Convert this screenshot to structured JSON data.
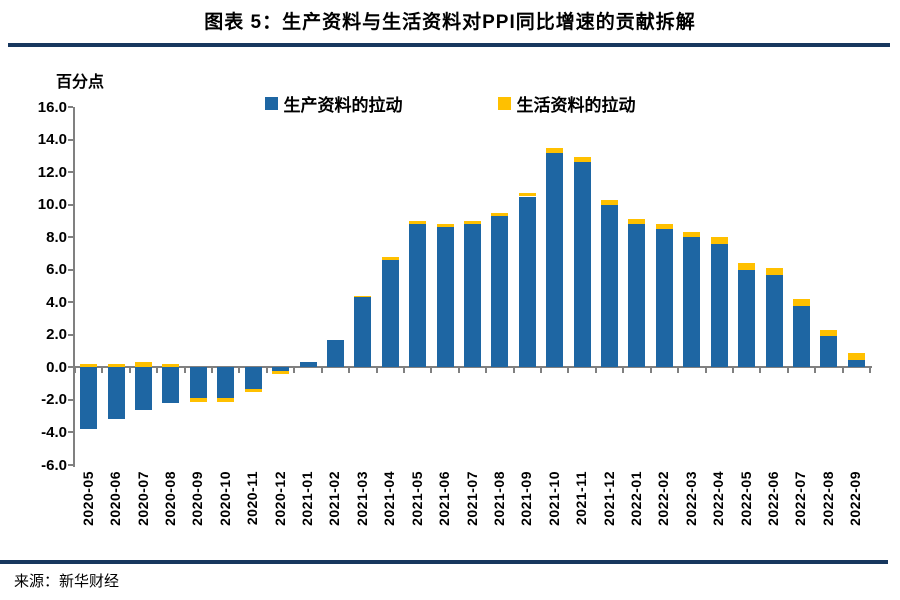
{
  "header": {
    "title": "图表 5：生产资料与生活资料对PPI同比增速的贡献拆解"
  },
  "footer": {
    "source": "来源：新华财经"
  },
  "colors": {
    "rule": "#17375E",
    "axis": "#808080",
    "production_blue": "#1E66A3",
    "livelihood_yellow": "#FFC000"
  },
  "chart_data": {
    "type": "bar",
    "stacked": true,
    "title": "图表 5：生产资料与生活资料对PPI同比增速的贡献拆解",
    "unit_label": "百分点",
    "xlabel": "",
    "ylabel": "百分点",
    "ylim": [
      -6.0,
      16.0
    ],
    "ytick_step": 2.0,
    "grid": false,
    "legend_position": "top",
    "categories": [
      "2020-05",
      "2020-06",
      "2020-07",
      "2020-08",
      "2020-09",
      "2020-10",
      "2020-11",
      "2020-12",
      "2021-01",
      "2021-02",
      "2021-03",
      "2021-04",
      "2021-05",
      "2021-06",
      "2021-07",
      "2021-08",
      "2021-09",
      "2021-10",
      "2021-11",
      "2021-12",
      "2022-01",
      "2022-02",
      "2022-03",
      "2022-04",
      "2022-05",
      "2022-06",
      "2022-07",
      "2022-08",
      "2022-09"
    ],
    "series": [
      {
        "name": "生产资料的拉动",
        "color": "#1E66A3",
        "values": [
          -3.8,
          -3.2,
          -2.6,
          -2.2,
          -1.9,
          -1.9,
          -1.3,
          -0.25,
          0.35,
          1.7,
          4.3,
          6.6,
          8.8,
          8.6,
          8.8,
          9.3,
          10.5,
          13.2,
          12.6,
          10.0,
          8.8,
          8.5,
          8.0,
          7.6,
          6.0,
          5.7,
          3.8,
          1.9,
          0.45
        ]
      },
      {
        "name": "生活资料的拉动",
        "color": "#FFC000",
        "values": [
          0.2,
          0.2,
          0.3,
          0.2,
          -0.2,
          -0.2,
          -0.2,
          -0.15,
          0.0,
          0.0,
          0.1,
          0.2,
          0.2,
          0.2,
          0.2,
          0.2,
          0.2,
          0.3,
          0.3,
          0.3,
          0.3,
          0.3,
          0.3,
          0.4,
          0.4,
          0.4,
          0.4,
          0.4,
          0.45
        ]
      }
    ]
  }
}
